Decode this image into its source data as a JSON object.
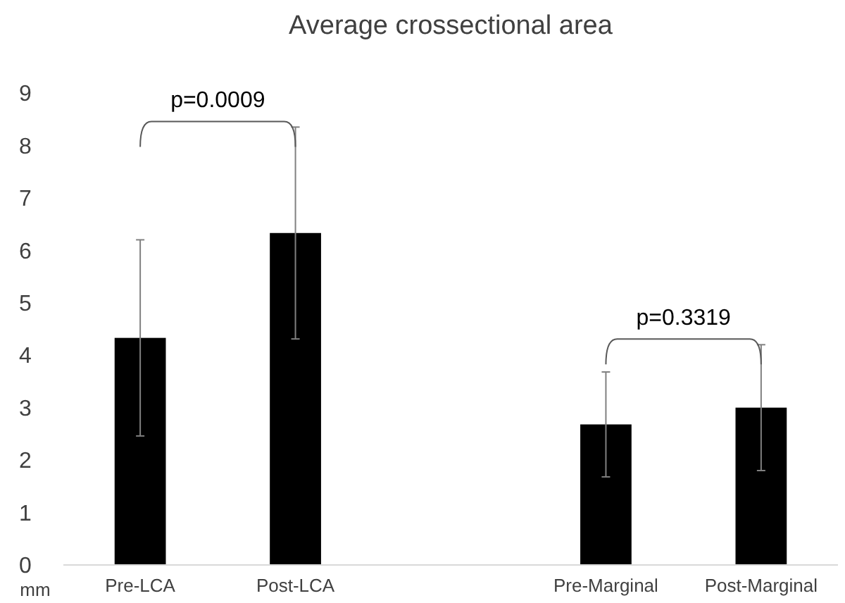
{
  "chart_data": {
    "type": "bar",
    "title": "Average crossectional area",
    "ylabel": "mm",
    "categories": [
      "Pre-LCA",
      "Post-LCA",
      null,
      "Pre-Marginal",
      "Post-Marginal"
    ],
    "values": [
      4.33,
      6.33,
      null,
      2.68,
      3.0
    ],
    "errors": [
      1.87,
      2.02,
      null,
      1.0,
      1.2
    ],
    "color": "#000000",
    "ylim": [
      0,
      9
    ],
    "yticks": [
      0,
      1,
      2,
      3,
      4,
      5,
      6,
      7,
      8,
      9
    ],
    "grid": false,
    "annotations": [
      "p=0.0009",
      "p=0.3319"
    ]
  }
}
